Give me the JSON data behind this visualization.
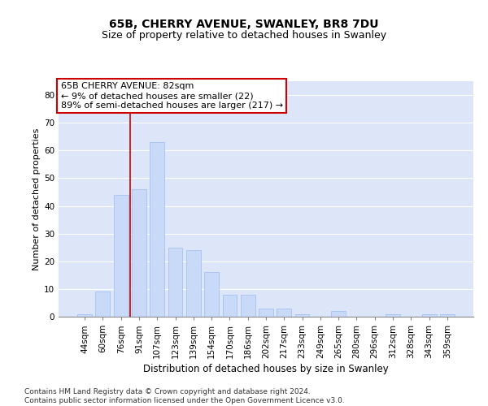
{
  "title1": "65B, CHERRY AVENUE, SWANLEY, BR8 7DU",
  "title2": "Size of property relative to detached houses in Swanley",
  "xlabel": "Distribution of detached houses by size in Swanley",
  "ylabel": "Number of detached properties",
  "categories": [
    "44sqm",
    "60sqm",
    "76sqm",
    "91sqm",
    "107sqm",
    "123sqm",
    "139sqm",
    "154sqm",
    "170sqm",
    "186sqm",
    "202sqm",
    "217sqm",
    "233sqm",
    "249sqm",
    "265sqm",
    "280sqm",
    "296sqm",
    "312sqm",
    "328sqm",
    "343sqm",
    "359sqm"
  ],
  "values": [
    1,
    9,
    44,
    46,
    63,
    25,
    24,
    16,
    8,
    8,
    3,
    3,
    1,
    0,
    2,
    0,
    0,
    1,
    0,
    1,
    1
  ],
  "bar_color": "#c9daf8",
  "bar_edge_color": "#a4c2f4",
  "vline_color": "#cc0000",
  "vline_position": 2.5,
  "annotation_text": "65B CHERRY AVENUE: 82sqm\n← 9% of detached houses are smaller (22)\n89% of semi-detached houses are larger (217) →",
  "annotation_box_color": "#ffffff",
  "annotation_box_edge_color": "#cc0000",
  "ylim": [
    0,
    85
  ],
  "yticks": [
    0,
    10,
    20,
    30,
    40,
    50,
    60,
    70,
    80
  ],
  "background_color": "#dce6f8",
  "grid_color": "#ffffff",
  "footer_text": "Contains HM Land Registry data © Crown copyright and database right 2024.\nContains public sector information licensed under the Open Government Licence v3.0.",
  "title_fontsize": 10,
  "subtitle_fontsize": 9,
  "xlabel_fontsize": 8.5,
  "ylabel_fontsize": 8,
  "tick_fontsize": 7.5,
  "annotation_fontsize": 8,
  "footer_fontsize": 6.5
}
